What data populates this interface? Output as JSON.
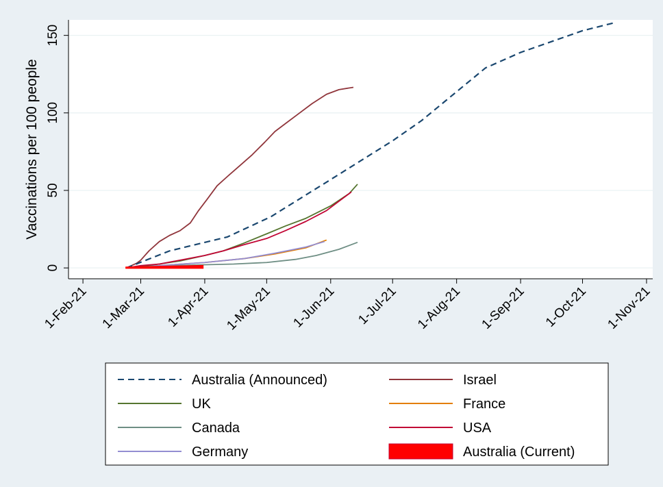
{
  "chart_data": {
    "type": "line",
    "title": "",
    "xlabel": "",
    "ylabel": "Vaccinations per 100 people",
    "x_is_date": true,
    "xlim": [
      "2021-01-25",
      "2021-11-04"
    ],
    "ylim": [
      -7,
      160
    ],
    "x_ticks": [
      {
        "date": "2021-02-01",
        "label": "1-Feb-21"
      },
      {
        "date": "2021-03-01",
        "label": "1-Mar-21"
      },
      {
        "date": "2021-04-01",
        "label": "1-Apr-21"
      },
      {
        "date": "2021-05-01",
        "label": "1-May-21"
      },
      {
        "date": "2021-06-01",
        "label": "1-Jun-21"
      },
      {
        "date": "2021-07-01",
        "label": "1-Jul-21"
      },
      {
        "date": "2021-08-01",
        "label": "1-Aug-21"
      },
      {
        "date": "2021-09-01",
        "label": "1-Sep-21"
      },
      {
        "date": "2021-10-01",
        "label": "1-Oct-21"
      },
      {
        "date": "2021-11-01",
        "label": "1-Nov-21"
      }
    ],
    "y_ticks": [
      0,
      50,
      100,
      150
    ],
    "grid": "horizontal",
    "legend_position": "bottom",
    "series": [
      {
        "name": "Australia (Announced)",
        "color": "#1a476f",
        "style": "dashed",
        "points": [
          [
            "2021-02-22",
            0
          ],
          [
            "2021-03-15",
            11
          ],
          [
            "2021-04-12",
            20
          ],
          [
            "2021-05-03",
            33
          ],
          [
            "2021-06-01",
            57
          ],
          [
            "2021-07-01",
            82
          ],
          [
            "2021-07-15",
            95
          ],
          [
            "2021-08-15",
            129
          ],
          [
            "2021-09-01",
            139
          ],
          [
            "2021-10-01",
            153
          ],
          [
            "2021-10-16",
            158
          ]
        ]
      },
      {
        "name": "Israel",
        "color": "#90353b",
        "style": "solid",
        "points": [
          [
            "2021-02-22",
            0
          ],
          [
            "2021-02-27",
            3
          ],
          [
            "2021-03-01",
            5
          ],
          [
            "2021-03-05",
            11
          ],
          [
            "2021-03-10",
            17
          ],
          [
            "2021-03-15",
            21
          ],
          [
            "2021-03-20",
            24
          ],
          [
            "2021-03-25",
            29
          ],
          [
            "2021-03-29",
            37
          ],
          [
            "2021-04-02",
            44
          ],
          [
            "2021-04-07",
            53
          ],
          [
            "2021-04-12",
            59
          ],
          [
            "2021-04-18",
            66
          ],
          [
            "2021-04-24",
            73
          ],
          [
            "2021-04-30",
            81
          ],
          [
            "2021-05-05",
            88
          ],
          [
            "2021-05-10",
            93
          ],
          [
            "2021-05-16",
            99
          ],
          [
            "2021-05-23",
            106
          ],
          [
            "2021-05-30",
            112
          ],
          [
            "2021-06-05",
            115
          ],
          [
            "2021-06-12",
            116.5
          ]
        ]
      },
      {
        "name": "UK",
        "color": "#55752f",
        "style": "solid",
        "points": [
          [
            "2021-02-22",
            0
          ],
          [
            "2021-03-01",
            1
          ],
          [
            "2021-03-10",
            2.5
          ],
          [
            "2021-03-20",
            4.5
          ],
          [
            "2021-04-01",
            8
          ],
          [
            "2021-04-10",
            11
          ],
          [
            "2021-04-20",
            16
          ],
          [
            "2021-05-01",
            22
          ],
          [
            "2021-05-10",
            27
          ],
          [
            "2021-05-20",
            32
          ],
          [
            "2021-06-01",
            40
          ],
          [
            "2021-06-10",
            48
          ],
          [
            "2021-06-14",
            54
          ]
        ]
      },
      {
        "name": "France",
        "color": "#e37e00",
        "style": "solid",
        "points": [
          [
            "2021-02-22",
            0
          ],
          [
            "2021-03-10",
            1.5
          ],
          [
            "2021-04-01",
            3.5
          ],
          [
            "2021-04-20",
            6
          ],
          [
            "2021-05-05",
            9
          ],
          [
            "2021-05-20",
            13
          ],
          [
            "2021-05-30",
            18
          ]
        ]
      },
      {
        "name": "Canada",
        "color": "#6e8e84",
        "style": "solid",
        "points": [
          [
            "2021-02-22",
            0
          ],
          [
            "2021-03-15",
            1.5
          ],
          [
            "2021-04-15",
            2.5
          ],
          [
            "2021-05-01",
            3.5
          ],
          [
            "2021-05-15",
            5.5
          ],
          [
            "2021-05-25",
            8
          ],
          [
            "2021-06-05",
            12
          ],
          [
            "2021-06-14",
            16.5
          ]
        ]
      },
      {
        "name": "USA",
        "color": "#c10534",
        "style": "solid",
        "points": [
          [
            "2021-02-22",
            0
          ],
          [
            "2021-03-01",
            1.5
          ],
          [
            "2021-03-10",
            2.5
          ],
          [
            "2021-03-20",
            5
          ],
          [
            "2021-04-01",
            8
          ],
          [
            "2021-04-10",
            11
          ],
          [
            "2021-04-20",
            15
          ],
          [
            "2021-05-01",
            19
          ],
          [
            "2021-05-10",
            24
          ],
          [
            "2021-05-20",
            30
          ],
          [
            "2021-05-30",
            37
          ],
          [
            "2021-06-05",
            43
          ],
          [
            "2021-06-11",
            49
          ]
        ]
      },
      {
        "name": "Germany",
        "color": "#938dd2",
        "style": "solid",
        "points": [
          [
            "2021-02-22",
            0
          ],
          [
            "2021-03-10",
            1.5
          ],
          [
            "2021-04-01",
            3.5
          ],
          [
            "2021-04-20",
            6
          ],
          [
            "2021-05-05",
            9.5
          ],
          [
            "2021-05-20",
            13.5
          ],
          [
            "2021-05-29",
            17
          ]
        ]
      },
      {
        "name": "Australia (Current)",
        "color": "#ff0000",
        "style": "area",
        "points": [
          [
            "2021-02-22",
            0.3
          ],
          [
            "2021-03-01",
            0.5
          ],
          [
            "2021-03-10",
            0.8
          ],
          [
            "2021-03-20",
            1.0
          ],
          [
            "2021-03-31",
            1.3
          ]
        ]
      }
    ]
  }
}
